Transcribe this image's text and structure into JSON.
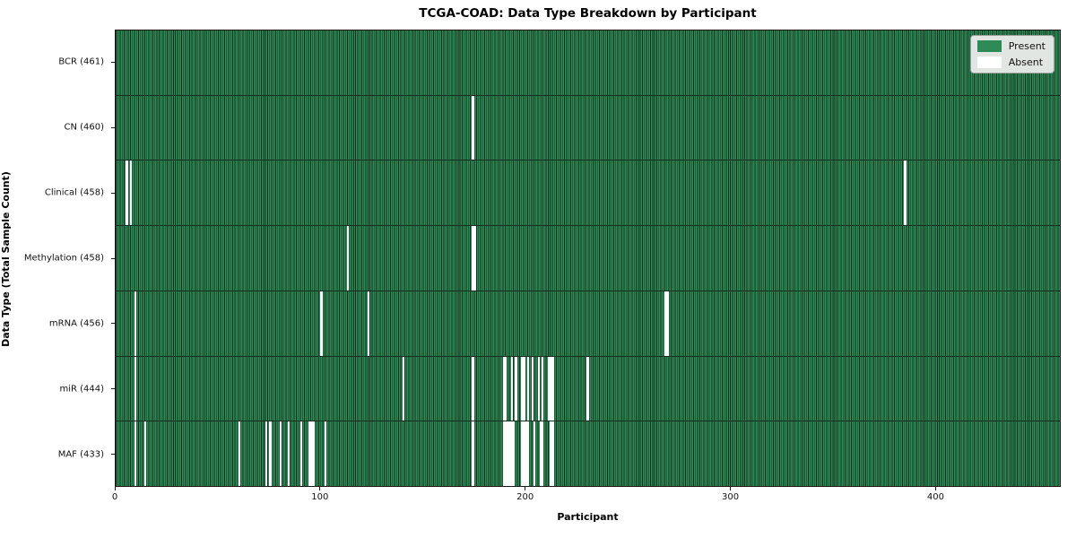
{
  "title": "TCGA-COAD: Data Type Breakdown by Participant",
  "xlabel": "Participant",
  "ylabel": "Data Type (Total Sample Count)",
  "legend": {
    "entries": [
      {
        "label": "Present",
        "color": "#2e8b57"
      },
      {
        "label": "Absent",
        "color": "#ffffff"
      }
    ]
  },
  "chart_data": {
    "type": "heatmap",
    "title": "TCGA-COAD: Data Type Breakdown by Participant",
    "xlabel": "Participant",
    "ylabel": "Data Type (Total Sample Count)",
    "x_ticks": [
      0,
      100,
      200,
      300,
      400
    ],
    "x_range": [
      0,
      461
    ],
    "total_participants": 461,
    "legend_position": "upper right",
    "colors": {
      "present": "#2e8b57",
      "absent": "#ffffff",
      "bar_edge": "#11301d"
    },
    "rows": [
      {
        "label": "BCR (461)",
        "data_type": "BCR",
        "total_sample_count": 461,
        "absent_participants": []
      },
      {
        "label": "CN (460)",
        "data_type": "CN",
        "total_sample_count": 460,
        "absent_participants": [
          174
        ]
      },
      {
        "label": "Clinical (458)",
        "data_type": "Clinical",
        "total_sample_count": 458,
        "absent_participants": [
          5,
          7,
          385
        ]
      },
      {
        "label": "Methylation (458)",
        "data_type": "Methylation",
        "total_sample_count": 458,
        "absent_participants": [
          113,
          174,
          175
        ]
      },
      {
        "label": "mRNA (456)",
        "data_type": "mRNA",
        "total_sample_count": 456,
        "absent_participants": [
          9,
          100,
          123,
          268,
          269
        ]
      },
      {
        "label": "miR (444)",
        "data_type": "miR",
        "total_sample_count": 444,
        "absent_participants": [
          9,
          140,
          174,
          189,
          190,
          193,
          195,
          198,
          199,
          201,
          203,
          206,
          208,
          211,
          212,
          213,
          230
        ]
      },
      {
        "label": "MAF (433)",
        "data_type": "MAF",
        "total_sample_count": 433,
        "absent_participants": [
          9,
          14,
          60,
          73,
          75,
          80,
          84,
          90,
          94,
          95,
          96,
          102,
          174,
          189,
          190,
          191,
          192,
          193,
          194,
          198,
          199,
          200,
          201,
          204,
          207,
          208,
          212,
          213
        ]
      }
    ]
  }
}
